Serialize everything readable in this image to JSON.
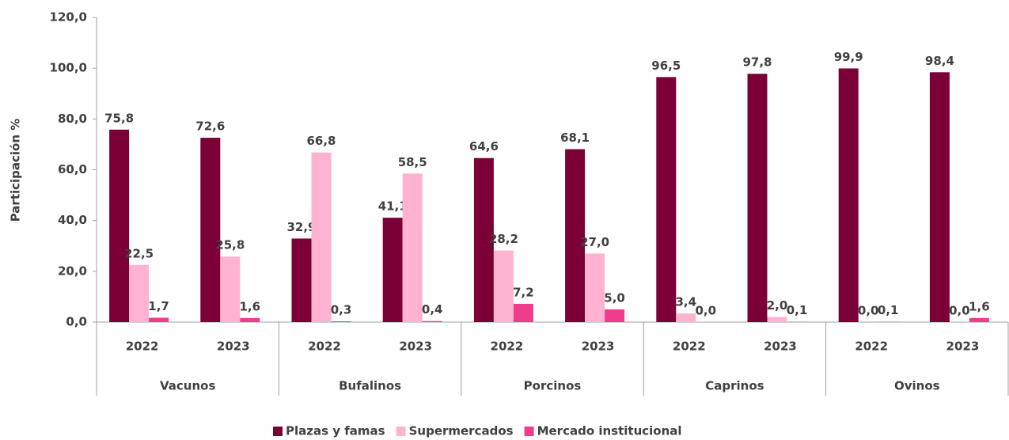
{
  "chart_data": {
    "type": "bar",
    "y_label": "Participación %",
    "categories": [
      "2022",
      "2023",
      "2022",
      "2023",
      "2022",
      "2023",
      "2022",
      "2023",
      "2022",
      "2023"
    ],
    "groups": [
      "Vacunos",
      "Bufalinos",
      "Porcinos",
      "Caprinos",
      "Ovinos"
    ],
    "series": [
      {
        "name": "Plazas y famas",
        "color": "#7b0035",
        "values": [
          75.8,
          72.6,
          32.9,
          41.1,
          64.6,
          68.1,
          96.5,
          97.8,
          99.9,
          98.4
        ],
        "value_labels": [
          "75,8",
          "72,6",
          "32,9",
          "41,1",
          "64,6",
          "68,1",
          "96,5",
          "97,8",
          "99,9",
          "98,4"
        ]
      },
      {
        "name": "Supermercados",
        "color": "#ffb3d1",
        "values": [
          22.5,
          25.8,
          66.8,
          58.5,
          28.2,
          27.0,
          3.4,
          2.0,
          0.0,
          0.0
        ],
        "value_labels": [
          "22,5",
          "25,8",
          "66,8",
          "58,5",
          "28,2",
          "27,0",
          "3,4",
          "2,0",
          "0,0",
          "0,0"
        ]
      },
      {
        "name": "Mercado institucional",
        "color": "#f03c8c",
        "values": [
          1.7,
          1.6,
          0.3,
          0.4,
          7.2,
          5.0,
          0.0,
          0.1,
          0.1,
          1.6
        ],
        "value_labels": [
          "1,7",
          "1,6",
          "0,3",
          "0,4",
          "7,2",
          "5,0",
          "0,0",
          "0,1",
          "0,1",
          "1,6"
        ]
      }
    ],
    "ylim": [
      0,
      120
    ],
    "yticks": [
      {
        "value": 0,
        "label": "0,0"
      },
      {
        "value": 20,
        "label": "20,0"
      },
      {
        "value": 40,
        "label": "40,0"
      },
      {
        "value": 60,
        "label": "60,0"
      },
      {
        "value": 80,
        "label": "80,0"
      },
      {
        "value": 100,
        "label": "100,0"
      },
      {
        "value": 120,
        "label": "120,0"
      }
    ],
    "grid": false,
    "legend": "bottom"
  }
}
